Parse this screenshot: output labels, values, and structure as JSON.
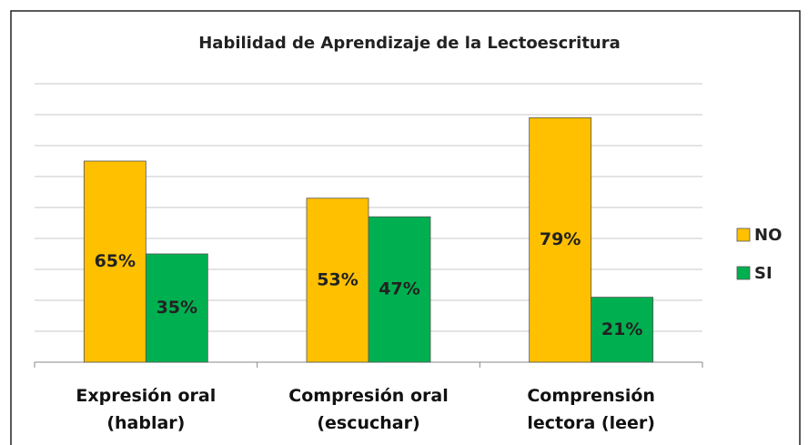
{
  "chart_data": {
    "type": "bar",
    "title": "Habilidad de Aprendizaje de la Lectoescritura",
    "categories": [
      "Expresión oral (hablar)",
      "Compresión oral (escuchar)",
      "Comprensión lectora (leer)"
    ],
    "series": [
      {
        "name": "NO",
        "color": "#FFC000",
        "values": [
          65,
          53,
          79
        ],
        "value_labels": [
          "65%",
          "53%",
          "79%"
        ]
      },
      {
        "name": "SI",
        "color": "#00B050",
        "values": [
          35,
          47,
          21
        ],
        "value_labels": [
          "35%",
          "47%",
          "21%"
        ]
      }
    ],
    "ylim": [
      0,
      90
    ],
    "yticks": [
      0,
      10,
      20,
      30,
      40,
      50,
      60,
      70,
      80,
      90
    ],
    "grid": true,
    "legend": "right"
  }
}
